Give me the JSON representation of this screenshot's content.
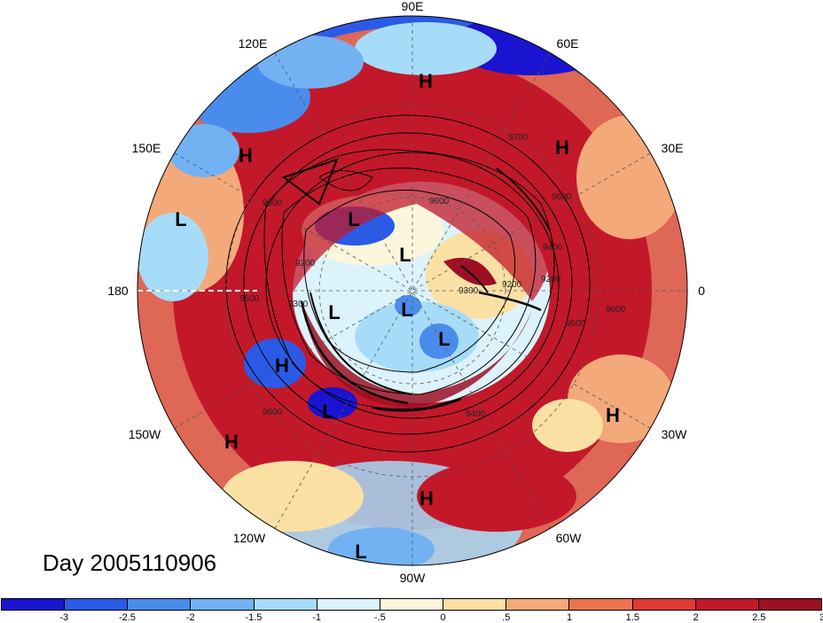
{
  "map": {
    "projection": "north-polar-stereographic",
    "field": "shaded anomaly with geopotential height contours",
    "longitude_labels": {
      "lon_90e": "90E",
      "lon_120e": "120E",
      "lon_60e": "60E",
      "lon_150e": "150E",
      "lon_30e": "30E",
      "lon_180": "180",
      "lon_0": "0",
      "lon_150w": "150W",
      "lon_30w": "30W",
      "lon_120w": "120W",
      "lon_60w": "60W",
      "lon_90w": "90W"
    },
    "pressure_centers": [
      {
        "label": "H"
      },
      {
        "label": "H"
      },
      {
        "label": "H"
      },
      {
        "label": "L"
      },
      {
        "label": "L"
      },
      {
        "label": "L"
      },
      {
        "label": "L"
      },
      {
        "label": "L"
      },
      {
        "label": "L"
      },
      {
        "label": "H"
      },
      {
        "label": "L"
      },
      {
        "label": "H"
      },
      {
        "label": "H"
      },
      {
        "label": "H"
      },
      {
        "label": "L"
      }
    ],
    "contour_labels": [
      "9700",
      "9600",
      "9000",
      "9400",
      "9200",
      "9300",
      "9200",
      "9600",
      "9300",
      "9200",
      "9600",
      "9400",
      "9600",
      "9500",
      "9600"
    ]
  },
  "day_label": "Day 2005110906",
  "colorbar": {
    "colors": [
      "#1a14d0",
      "#2b5ae6",
      "#4a8cec",
      "#72b2f2",
      "#a6dcf8",
      "#dcf3fb",
      "#fcf6dc",
      "#fbe0a4",
      "#f4a97a",
      "#ec7352",
      "#e03a35",
      "#c3182a",
      "#9e0f24"
    ],
    "tick_labels": [
      "-3",
      "-2.5",
      "-2",
      "-1.5",
      "-1",
      "-.5",
      "0",
      ".5",
      "1",
      "1.5",
      "2",
      "2.5",
      "3"
    ]
  }
}
